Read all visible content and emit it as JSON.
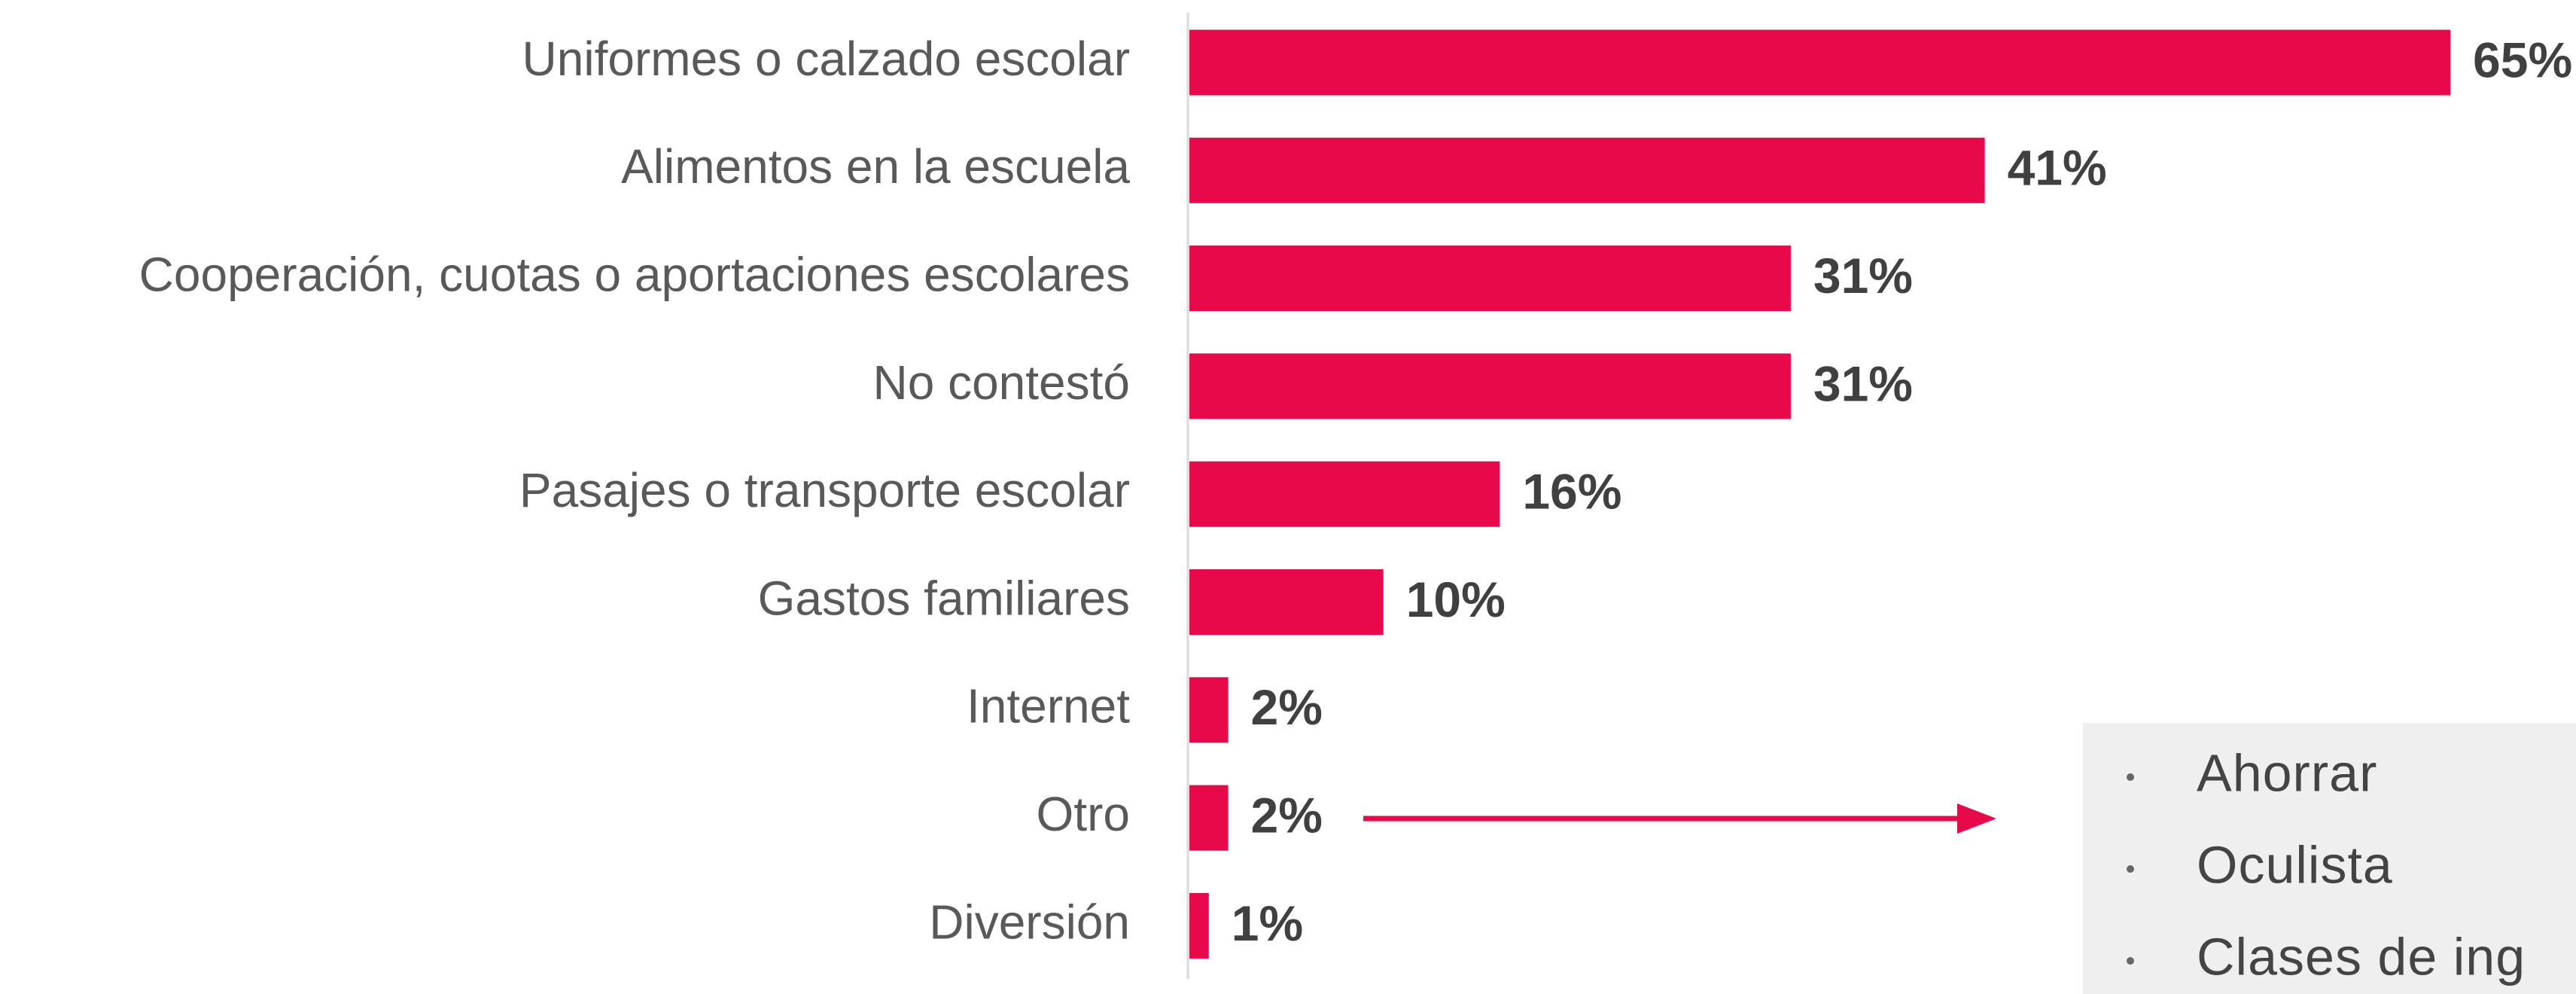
{
  "chart_data": {
    "type": "bar",
    "orientation": "horizontal",
    "categories": [
      "Uniformes o calzado escolar",
      "Alimentos en la escuela",
      "Cooperación, cuotas o aportaciones escolares",
      "No contestó",
      "Pasajes o transporte escolar",
      "Gastos familiares",
      "Internet",
      "Otro",
      "Diversión"
    ],
    "values": [
      65,
      41,
      31,
      31,
      16,
      10,
      2,
      2,
      1
    ],
    "value_labels": [
      "65%",
      "41%",
      "31%",
      "31%",
      "16%",
      "10%",
      "2%",
      "2%",
      "1%"
    ],
    "color": "#e8094a",
    "annotation_items": [
      "Ahorrar",
      "Oculista",
      "Clases de ing"
    ]
  }
}
